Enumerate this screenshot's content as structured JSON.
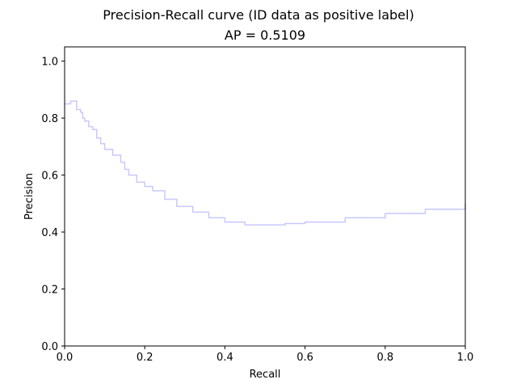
{
  "chart_data": {
    "type": "line",
    "title": "Precision-Recall curve (ID data as positive label)",
    "subtitle": "AP = 0.5109",
    "xlabel": "Recall",
    "ylabel": "Precision",
    "xlim": [
      0.0,
      1.0
    ],
    "ylim": [
      0.0,
      1.05
    ],
    "grid": false,
    "x_ticks": [
      "0.0",
      "0.2",
      "0.4",
      "0.6",
      "0.8",
      "1.0"
    ],
    "y_ticks": [
      "0.0",
      "0.2",
      "0.4",
      "0.6",
      "0.8",
      "1.0"
    ],
    "line_color": "#c8c8ff",
    "series": [
      {
        "step": true,
        "x": [
          0.0,
          0.015,
          0.015,
          0.03,
          0.03,
          0.04,
          0.045,
          0.05,
          0.06,
          0.07,
          0.08,
          0.09,
          0.1,
          0.12,
          0.14,
          0.15,
          0.16,
          0.18,
          0.2,
          0.22,
          0.25,
          0.28,
          0.32,
          0.36,
          0.4,
          0.45,
          0.5,
          0.55,
          0.6,
          0.7,
          0.8,
          0.9,
          1.0
        ],
        "y": [
          0.85,
          0.85,
          0.86,
          0.86,
          0.83,
          0.82,
          0.8,
          0.79,
          0.77,
          0.76,
          0.73,
          0.71,
          0.69,
          0.67,
          0.645,
          0.62,
          0.6,
          0.575,
          0.56,
          0.545,
          0.515,
          0.49,
          0.47,
          0.45,
          0.435,
          0.425,
          0.425,
          0.43,
          0.435,
          0.45,
          0.465,
          0.48,
          0.5
        ]
      }
    ]
  }
}
